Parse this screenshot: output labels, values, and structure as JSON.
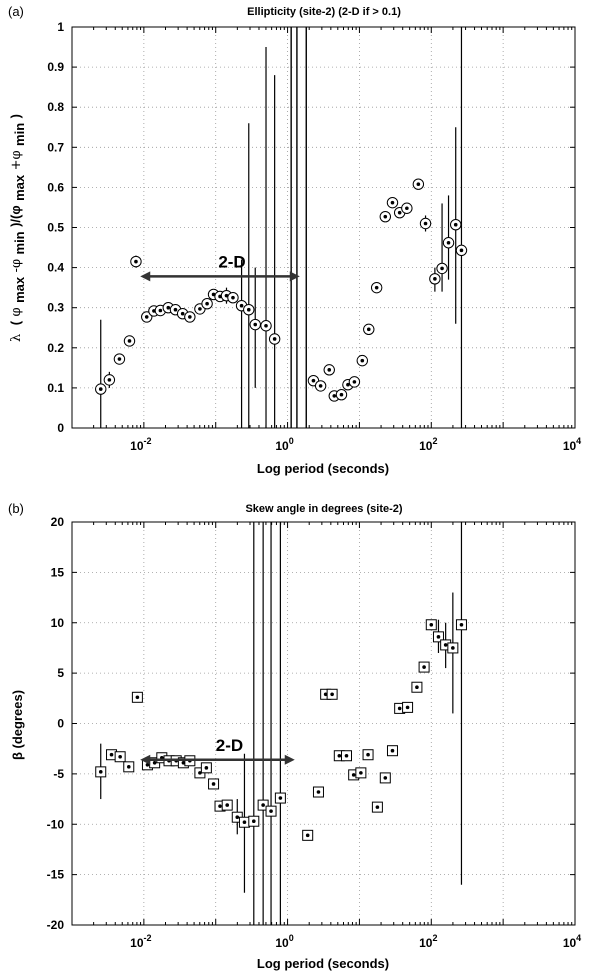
{
  "chart_data": [
    {
      "panel": "(a)",
      "type": "scatter",
      "title": "Ellipticity (site-2) (2-D if > 0.1)",
      "xlabel": "Log period (seconds)",
      "ylabel_main": "λ",
      "ylabel_expr": "( φ_max − φ_min )/( φ_max + φ_min )",
      "ylabel_parts": {
        "open": "(",
        "phi1": "φ",
        "max1": "max",
        "mid": " -φ",
        "min1": "min",
        "mid2": ")/(φ",
        "max2": "max",
        "plus": " +φ",
        "min2": "min",
        "close": ")"
      },
      "x_log_range": [
        -3,
        4
      ],
      "x_ticks": [
        {
          "exp": -2,
          "base": "10",
          "sup": "-2"
        },
        {
          "exp": 0,
          "base": "10",
          "sup": "0"
        },
        {
          "exp": 2,
          "base": "10",
          "sup": "2"
        },
        {
          "exp": 4,
          "base": "10",
          "sup": "4"
        }
      ],
      "ylim": [
        0,
        1
      ],
      "y_ticks": [
        "0",
        "0.1",
        "0.2",
        "0.3",
        "0.4",
        "0.5",
        "0.6",
        "0.7",
        "0.8",
        "0.9",
        "1"
      ],
      "y_tick_values": [
        0,
        0.1,
        0.2,
        0.3,
        0.4,
        0.5,
        0.6,
        0.7,
        0.8,
        0.9,
        1
      ],
      "grid": true,
      "annotation": {
        "text": "2-D",
        "from": -2.05,
        "to": 0.17
      },
      "points": [
        {
          "x": -2.6,
          "y": 0.097,
          "lo": 0.0,
          "hi": 0.27
        },
        {
          "x": -2.48,
          "y": 0.12,
          "lo": 0.1,
          "hi": 0.14
        },
        {
          "x": -2.34,
          "y": 0.172
        },
        {
          "x": -2.2,
          "y": 0.217
        },
        {
          "x": -2.11,
          "y": 0.415,
          "lo": 0.4,
          "hi": 0.43
        },
        {
          "x": -1.96,
          "y": 0.277
        },
        {
          "x": -1.86,
          "y": 0.292
        },
        {
          "x": -1.77,
          "y": 0.293
        },
        {
          "x": -1.66,
          "y": 0.3
        },
        {
          "x": -1.56,
          "y": 0.295
        },
        {
          "x": -1.46,
          "y": 0.285
        },
        {
          "x": -1.36,
          "y": 0.277
        },
        {
          "x": -1.22,
          "y": 0.297
        },
        {
          "x": -1.12,
          "y": 0.31
        },
        {
          "x": -1.03,
          "y": 0.333
        },
        {
          "x": -0.94,
          "y": 0.328
        },
        {
          "x": -0.85,
          "y": 0.33,
          "lo": 0.31,
          "hi": 0.35
        },
        {
          "x": -0.76,
          "y": 0.325
        },
        {
          "x": -0.64,
          "y": 0.305,
          "lo": 0.0,
          "hi": 0.42
        },
        {
          "x": -0.54,
          "y": 0.295,
          "lo": 0.0,
          "hi": 0.76
        },
        {
          "x": -0.45,
          "y": 0.258,
          "lo": 0.1,
          "hi": 0.4
        },
        {
          "x": -0.3,
          "y": 0.255,
          "lo": 0.0,
          "hi": 0.95
        },
        {
          "x": -0.18,
          "y": 0.222,
          "lo": 0.0,
          "hi": 0.88
        },
        {
          "x": 0.36,
          "y": 0.118
        },
        {
          "x": 0.46,
          "y": 0.105
        },
        {
          "x": 0.58,
          "y": 0.145
        },
        {
          "x": 0.65,
          "y": 0.08
        },
        {
          "x": 0.75,
          "y": 0.083
        },
        {
          "x": 0.84,
          "y": 0.108
        },
        {
          "x": 0.93,
          "y": 0.115
        },
        {
          "x": 1.04,
          "y": 0.168
        },
        {
          "x": 1.13,
          "y": 0.246
        },
        {
          "x": 1.24,
          "y": 0.35
        },
        {
          "x": 1.36,
          "y": 0.527
        },
        {
          "x": 1.46,
          "y": 0.562
        },
        {
          "x": 1.56,
          "y": 0.537
        },
        {
          "x": 1.66,
          "y": 0.548
        },
        {
          "x": 1.82,
          "y": 0.608
        },
        {
          "x": 1.92,
          "y": 0.51,
          "lo": 0.49,
          "hi": 0.53
        },
        {
          "x": 2.05,
          "y": 0.372,
          "lo": 0.34,
          "hi": 0.4
        },
        {
          "x": 2.15,
          "y": 0.398,
          "lo": 0.34,
          "hi": 0.56
        },
        {
          "x": 2.24,
          "y": 0.462,
          "lo": 0.37,
          "hi": 0.58
        },
        {
          "x": 2.34,
          "y": 0.507,
          "lo": 0.26,
          "hi": 0.75
        },
        {
          "x": 2.42,
          "y": 0.443,
          "lo": 0.0,
          "hi": 1.0
        }
      ],
      "extra_lines": [
        {
          "x": 0.05,
          "lo": 0.0,
          "hi": 1.0
        },
        {
          "x": 0.13,
          "lo": 0.0,
          "hi": 1.0
        },
        {
          "x": 0.26,
          "lo": 0.0,
          "hi": 1.0
        }
      ]
    },
    {
      "panel": "(b)",
      "type": "scatter",
      "title": "Skew angle in degrees (site-2)",
      "xlabel": "Log period (seconds)",
      "ylabel": "β (degrees)",
      "x_log_range": [
        -3,
        4
      ],
      "x_ticks": [
        {
          "exp": -2,
          "base": "10",
          "sup": "-2"
        },
        {
          "exp": 0,
          "base": "10",
          "sup": "0"
        },
        {
          "exp": 2,
          "base": "10",
          "sup": "2"
        },
        {
          "exp": 4,
          "base": "10",
          "sup": "4"
        }
      ],
      "ylim": [
        -20,
        20
      ],
      "y_ticks": [
        "-20",
        "-15",
        "-10",
        "-5",
        "0",
        "5",
        "10",
        "15",
        "20"
      ],
      "y_tick_values": [
        -20,
        -15,
        -10,
        -5,
        0,
        5,
        10,
        15,
        20
      ],
      "grid": true,
      "annotation": {
        "text": "2-D",
        "from": -2.05,
        "to": 0.1
      },
      "points": [
        {
          "x": -2.6,
          "y": -4.8,
          "lo": -7.5,
          "hi": -2.0
        },
        {
          "x": -2.45,
          "y": -3.1
        },
        {
          "x": -2.33,
          "y": -3.3
        },
        {
          "x": -2.21,
          "y": -4.3
        },
        {
          "x": -2.09,
          "y": 2.6
        },
        {
          "x": -1.95,
          "y": -4.1
        },
        {
          "x": -1.85,
          "y": -3.9
        },
        {
          "x": -1.75,
          "y": -3.4
        },
        {
          "x": -1.65,
          "y": -3.7
        },
        {
          "x": -1.55,
          "y": -3.7
        },
        {
          "x": -1.45,
          "y": -3.9
        },
        {
          "x": -1.36,
          "y": -3.7
        },
        {
          "x": -1.22,
          "y": -4.9
        },
        {
          "x": -1.13,
          "y": -4.4
        },
        {
          "x": -1.03,
          "y": -6.0
        },
        {
          "x": -0.94,
          "y": -8.2
        },
        {
          "x": -0.84,
          "y": -8.1
        },
        {
          "x": -0.7,
          "y": -9.3,
          "lo": -11.0,
          "hi": -7.5
        },
        {
          "x": -0.6,
          "y": -9.8,
          "lo": -16.8,
          "hi": -3.0
        },
        {
          "x": -0.47,
          "y": -9.7,
          "lo": -20.0,
          "hi": 20.0
        },
        {
          "x": -0.34,
          "y": -8.1,
          "lo": -20.0,
          "hi": 20.0
        },
        {
          "x": -0.23,
          "y": -8.7,
          "lo": -20.0,
          "hi": 20.0
        },
        {
          "x": -0.1,
          "y": -7.4,
          "lo": -20.0,
          "hi": 20.0
        },
        {
          "x": 0.28,
          "y": -11.1
        },
        {
          "x": 0.43,
          "y": -6.8
        },
        {
          "x": 0.53,
          "y": 2.9
        },
        {
          "x": 0.62,
          "y": 2.9
        },
        {
          "x": 0.72,
          "y": -3.2
        },
        {
          "x": 0.82,
          "y": -3.2
        },
        {
          "x": 0.92,
          "y": -5.1
        },
        {
          "x": 1.02,
          "y": -4.9
        },
        {
          "x": 1.12,
          "y": -3.1
        },
        {
          "x": 1.25,
          "y": -8.3
        },
        {
          "x": 1.36,
          "y": -5.4
        },
        {
          "x": 1.46,
          "y": -2.7
        },
        {
          "x": 1.56,
          "y": 1.5
        },
        {
          "x": 1.67,
          "y": 1.6
        },
        {
          "x": 1.8,
          "y": 3.6
        },
        {
          "x": 1.9,
          "y": 5.6
        },
        {
          "x": 2.0,
          "y": 9.8
        },
        {
          "x": 2.1,
          "y": 8.6,
          "lo": 7.0,
          "hi": 10.3
        },
        {
          "x": 2.2,
          "y": 7.8,
          "lo": 5.5,
          "hi": 10.0
        },
        {
          "x": 2.3,
          "y": 7.5,
          "lo": 1.0,
          "hi": 13.0
        },
        {
          "x": 2.42,
          "y": 9.8,
          "lo": -16.0,
          "hi": 20.0
        }
      ],
      "extra_lines": []
    }
  ]
}
